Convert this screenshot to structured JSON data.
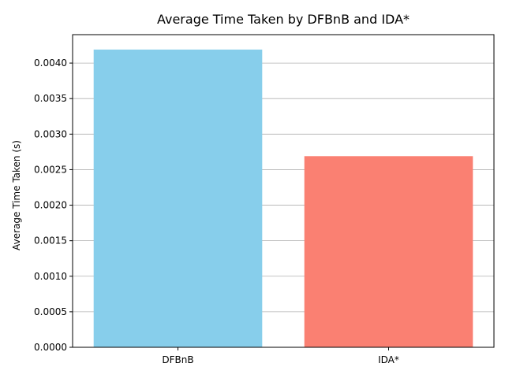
{
  "chart_data": {
    "type": "bar",
    "title": "Average Time Taken by DFBnB and IDA*",
    "xlabel": "",
    "ylabel": "Average Time Taken (s)",
    "categories": [
      "DFBnB",
      "IDA*"
    ],
    "values": [
      0.00419,
      0.00269
    ],
    "bar_colors": [
      "#87ceeb",
      "#fa8072"
    ],
    "ylim": [
      0,
      0.0044
    ],
    "yticks": [
      "0.0000",
      "0.0005",
      "0.0010",
      "0.0015",
      "0.0020",
      "0.0025",
      "0.0030",
      "0.0035",
      "0.0040"
    ],
    "grid": "y-major",
    "legend": "none"
  }
}
